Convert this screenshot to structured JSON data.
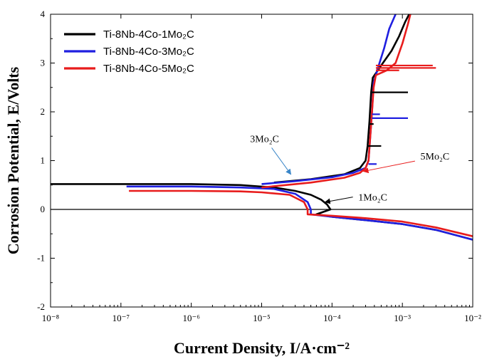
{
  "chart_data": {
    "type": "line",
    "xlabel": "Current Density, I/A·cm⁻²",
    "ylabel": "Corrosion Potential, E/Volts",
    "xscale": "log",
    "xlim": [
      1e-08,
      0.01
    ],
    "ylim": [
      -2,
      4
    ],
    "x_tick_labels": [
      "10⁻⁸",
      "10⁻⁷",
      "10⁻⁶",
      "10⁻⁵",
      "10⁻⁴",
      "10⁻³",
      "10⁻²"
    ],
    "y_tick_labels": [
      "-2",
      "-1",
      "0",
      "1",
      "2",
      "3",
      "4"
    ],
    "legend_position": "top-left",
    "series": [
      {
        "name": "Ti-8Nb-4Co-1Mo₂C",
        "color": "#000000",
        "points": [
          [
            1e-08,
            0.52
          ],
          [
            1e-07,
            0.52
          ],
          [
            1e-06,
            0.52
          ],
          [
            5e-06,
            0.5
          ],
          [
            1.5e-05,
            0.45
          ],
          [
            3e-05,
            0.38
          ],
          [
            5e-05,
            0.3
          ],
          [
            7e-05,
            0.2
          ],
          [
            8.5e-05,
            0.1
          ],
          [
            9.5e-05,
            0.0
          ],
          [
            6e-05,
            -0.1
          ],
          [
            0.0001,
            -0.15
          ],
          [
            0.0003,
            -0.22
          ],
          [
            0.001,
            -0.3
          ],
          [
            0.003,
            -0.42
          ],
          [
            0.01,
            -0.62
          ],
          [
            1.5e-05,
            0.55
          ],
          [
            5e-05,
            0.62
          ],
          [
            0.00015,
            0.72
          ],
          [
            0.00025,
            0.85
          ],
          [
            0.0003,
            1.0
          ],
          [
            0.00032,
            1.3
          ],
          [
            0.00034,
            1.8
          ],
          [
            0.00036,
            2.4
          ],
          [
            0.00038,
            2.7
          ],
          [
            0.0005,
            2.95
          ],
          [
            0.0007,
            3.25
          ],
          [
            0.0009,
            3.55
          ],
          [
            0.0011,
            3.85
          ],
          [
            0.00125,
            4.0
          ]
        ]
      },
      {
        "name": "Ti-8Nb-4Co-3Mo₂C",
        "color": "#1f1fe0",
        "points": [
          [
            1.2e-07,
            0.47
          ],
          [
            1e-06,
            0.47
          ],
          [
            5e-06,
            0.45
          ],
          [
            1.5e-05,
            0.42
          ],
          [
            3e-05,
            0.32
          ],
          [
            4.5e-05,
            0.15
          ],
          [
            5e-05,
            0.0
          ],
          [
            5e-05,
            -0.1
          ],
          [
            0.0001,
            -0.15
          ],
          [
            0.0003,
            -0.22
          ],
          [
            0.001,
            -0.3
          ],
          [
            0.003,
            -0.42
          ],
          [
            0.01,
            -0.62
          ],
          [
            1e-05,
            0.52
          ],
          [
            3e-05,
            0.58
          ],
          [
            0.0001,
            0.66
          ],
          [
            0.0002,
            0.75
          ],
          [
            0.0003,
            0.85
          ],
          [
            0.00033,
            1.0
          ],
          [
            0.00035,
            1.5
          ],
          [
            0.00037,
            2.0
          ],
          [
            0.00039,
            2.6
          ],
          [
            0.00045,
            2.9
          ],
          [
            0.00055,
            3.3
          ],
          [
            0.00065,
            3.7
          ],
          [
            0.0008,
            4.0
          ]
        ]
      },
      {
        "name": "Ti-8Nb-4Co-5Mo₂C",
        "color": "#e81c1c",
        "points": [
          [
            1.3e-07,
            0.38
          ],
          [
            1e-06,
            0.38
          ],
          [
            5e-06,
            0.37
          ],
          [
            1e-05,
            0.35
          ],
          [
            2.5e-05,
            0.3
          ],
          [
            4e-05,
            0.15
          ],
          [
            4.5e-05,
            0.0
          ],
          [
            4.5e-05,
            -0.1
          ],
          [
            0.0001,
            -0.13
          ],
          [
            0.0003,
            -0.18
          ],
          [
            0.001,
            -0.25
          ],
          [
            0.003,
            -0.37
          ],
          [
            0.01,
            -0.55
          ],
          [
            1e-05,
            0.45
          ],
          [
            5e-05,
            0.55
          ],
          [
            0.00015,
            0.65
          ],
          [
            0.00025,
            0.75
          ],
          [
            0.0003,
            0.85
          ],
          [
            0.00033,
            1.0
          ],
          [
            0.00035,
            1.5
          ],
          [
            0.00037,
            2.0
          ],
          [
            0.00039,
            2.5
          ],
          [
            0.00042,
            2.75
          ],
          [
            0.0006,
            2.85
          ],
          [
            0.0008,
            3.0
          ],
          [
            0.001,
            3.4
          ],
          [
            0.0012,
            3.8
          ],
          [
            0.0013,
            4.0
          ]
        ]
      }
    ],
    "spikes": [
      {
        "series": 0,
        "y": 2.4,
        "x_from": 0.00036,
        "x_to": 0.0012
      },
      {
        "series": 0,
        "y": 1.3,
        "x_from": 0.00032,
        "x_to": 0.0005
      },
      {
        "series": 0,
        "y": 1.75,
        "x_from": 0.00034,
        "x_to": 0.00039
      },
      {
        "series": 1,
        "y": 1.87,
        "x_from": 0.00037,
        "x_to": 0.0012
      },
      {
        "series": 1,
        "y": 0.93,
        "x_from": 0.00033,
        "x_to": 0.00043
      },
      {
        "series": 1,
        "y": 1.95,
        "x_from": 0.00037,
        "x_to": 0.00048
      },
      {
        "series": 2,
        "y": 2.95,
        "x_from": 0.00042,
        "x_to": 0.0027
      },
      {
        "series": 2,
        "y": 2.9,
        "x_from": 0.00042,
        "x_to": 0.003
      },
      {
        "series": 2,
        "y": 2.85,
        "x_from": 0.00042,
        "x_to": 0.0009
      }
    ],
    "annotations": [
      {
        "text": "3Mo₂C",
        "x": 1.1e-05,
        "y": 1.38,
        "arrow_to": [
          2.6e-05,
          0.72
        ]
      },
      {
        "text": "5Mo₂C",
        "x": 0.0029,
        "y": 1.02,
        "arrow_to": [
          0.00028,
          0.78
        ]
      },
      {
        "text": "1Mo₂C",
        "x": 0.00038,
        "y": 0.18,
        "arrow_to": [
          8e-05,
          0.15
        ]
      }
    ]
  }
}
